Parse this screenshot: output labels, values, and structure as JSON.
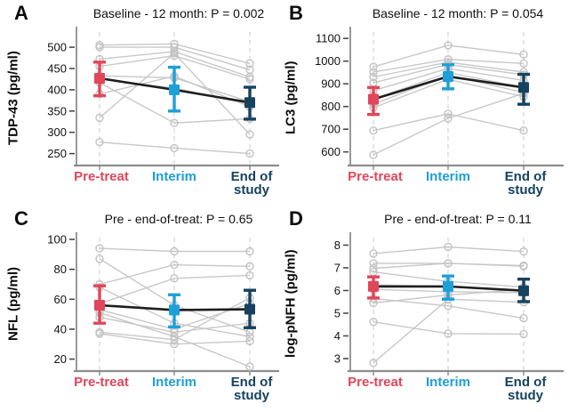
{
  "figure": {
    "description": "Four-panel longitudinal biomarker figure with individual patient trajectories and mean ± error bars at three timepoints",
    "categories": [
      {
        "id": "pre-treat",
        "label": "Pre-treat",
        "color": "#E2465A"
      },
      {
        "id": "interim",
        "label": "Interim",
        "color": "#1E9FD8"
      },
      {
        "id": "end-of-study",
        "label": "End of study",
        "color": "#16425E"
      }
    ],
    "colors": {
      "subject_line": "#C8C8C8",
      "subject_marker": "#C3C3C3",
      "mean_line": "#1E1E1E",
      "axis": "#8D8D8D",
      "tick": "#4A4A4A",
      "tick_text": "#111111",
      "guide": "#DBDBDB",
      "background": "#FFFFFF"
    }
  },
  "chart_data": [
    {
      "type": "line",
      "panel_label": "A",
      "title": "Baseline - 12 month: P = 0.002",
      "ylabel": "TDP-43 (pg/ml)",
      "xlabel": "",
      "categories": [
        "Pre-treat",
        "Interim",
        "End of study"
      ],
      "yticks": [
        250,
        300,
        350,
        400,
        450,
        500
      ],
      "ylim": [
        222,
        542
      ],
      "means": [
        {
          "value": 427,
          "lo": 386,
          "hi": 465
        },
        {
          "value": 400,
          "lo": 350,
          "hi": 453
        },
        {
          "value": 370,
          "lo": 331,
          "hi": 406
        }
      ],
      "subjects": [
        [
          505,
          508,
          462
        ],
        [
          500,
          500,
          447
        ],
        [
          472,
          490,
          430
        ],
        [
          455,
          480,
          425
        ],
        [
          433,
          428,
          372
        ],
        [
          425,
          404,
          366
        ],
        [
          417,
          322,
          332
        ],
        [
          390,
          432,
          360
        ],
        [
          334,
          486,
          295
        ],
        [
          277,
          263,
          250
        ]
      ]
    },
    {
      "type": "line",
      "panel_label": "B",
      "title": "Baseline - 12 month: P = 0.054",
      "ylabel": "LC3 (pg/ml)",
      "xlabel": "",
      "categories": [
        "Pre-treat",
        "Interim",
        "End of study"
      ],
      "yticks": [
        600,
        700,
        800,
        900,
        1000,
        1100
      ],
      "ylim": [
        540,
        1140
      ],
      "means": [
        {
          "value": 832,
          "lo": 765,
          "hi": 884
        },
        {
          "value": 932,
          "lo": 878,
          "hi": 984
        },
        {
          "value": 884,
          "lo": 810,
          "hi": 942
        }
      ],
      "subjects": [
        [
          975,
          1070,
          1029
        ],
        [
          952,
          1008,
          990
        ],
        [
          930,
          995,
          952
        ],
        [
          905,
          985,
          940
        ],
        [
          870,
          968,
          915
        ],
        [
          832,
          950,
          884
        ],
        [
          810,
          938,
          862
        ],
        [
          795,
          920,
          843
        ],
        [
          694,
          768,
          694
        ],
        [
          587,
          748,
          858
        ]
      ]
    },
    {
      "type": "line",
      "panel_label": "C",
      "title": "Pre - end-of-treat: P = 0.65",
      "ylabel": "NFL (pg/ml)",
      "xlabel": "",
      "categories": [
        "Pre-treat",
        "Interim",
        "End of study"
      ],
      "yticks": [
        20,
        40,
        60,
        80,
        100
      ],
      "ylim": [
        12,
        103
      ],
      "means": [
        {
          "value": 56,
          "lo": 44,
          "hi": 69
        },
        {
          "value": 52.8,
          "lo": 41.5,
          "hi": 63
        },
        {
          "value": 53.3,
          "lo": 41,
          "hi": 66
        }
      ],
      "subjects": [
        [
          94,
          92,
          92
        ],
        [
          87,
          56,
          38
        ],
        [
          70,
          83,
          82
        ],
        [
          68,
          44,
          35
        ],
        [
          57,
          74,
          76
        ],
        [
          53,
          40,
          57
        ],
        [
          48,
          38,
          44
        ],
        [
          38,
          33,
          61
        ],
        [
          37,
          30,
          32
        ],
        [
          51,
          35,
          15
        ]
      ]
    },
    {
      "type": "line",
      "panel_label": "D",
      "title": "Pre - end-of-treat: P = 0.11",
      "ylabel": "log-pNFH (pg/ml)",
      "xlabel": "",
      "categories": [
        "Pre-treat",
        "Interim",
        "End of study"
      ],
      "yticks": [
        3,
        4,
        5,
        6,
        7,
        8
      ],
      "ylim": [
        2.45,
        8.45
      ],
      "means": [
        {
          "value": 6.18,
          "lo": 5.67,
          "hi": 6.6
        },
        {
          "value": 6.18,
          "lo": 5.62,
          "hi": 6.64
        },
        {
          "value": 5.99,
          "lo": 5.51,
          "hi": 6.5
        }
      ],
      "subjects": [
        [
          7.63,
          7.92,
          7.72
        ],
        [
          7.2,
          7.2,
          7.1
        ],
        [
          6.98,
          7.2,
          7.07
        ],
        [
          6.82,
          6.4,
          6.15
        ],
        [
          6.25,
          6.18,
          6.02
        ],
        [
          6.05,
          5.95,
          5.9
        ],
        [
          5.65,
          5.32,
          4.78
        ],
        [
          5.45,
          5.8,
          6.05
        ],
        [
          4.62,
          4.1,
          4.08
        ],
        [
          2.81,
          5.62,
          5.48
        ]
      ]
    }
  ]
}
